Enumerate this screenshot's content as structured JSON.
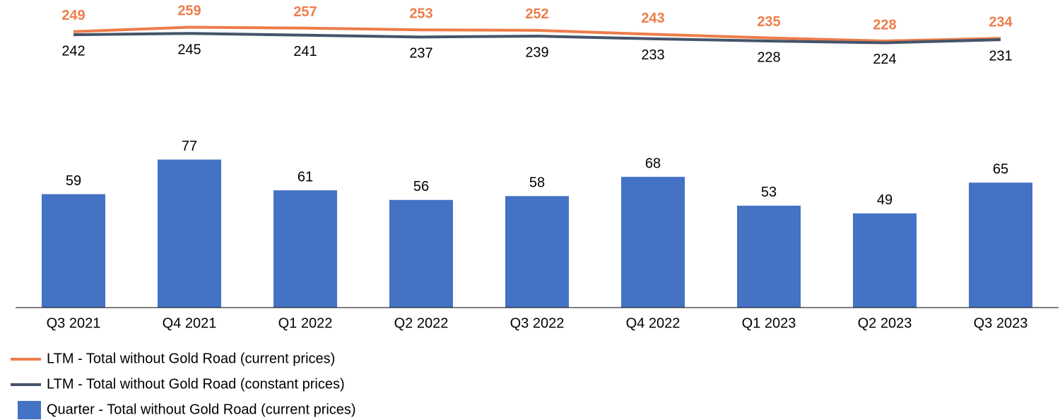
{
  "chart_data": {
    "type": "combo",
    "categories": [
      "Q3 2021",
      "Q4 2021",
      "Q1 2022",
      "Q2 2022",
      "Q3 2022",
      "Q4 2022",
      "Q1 2023",
      "Q2 2023",
      "Q3 2023"
    ],
    "series": [
      {
        "name": "LTM - Total without Gold Road (current prices)",
        "type": "line",
        "axis": "y2",
        "color": "#ED7D4A",
        "values": [
          249,
          259,
          257,
          253,
          252,
          243,
          235,
          228,
          234
        ]
      },
      {
        "name": "LTM - Total without Gold Road (constant prices)",
        "type": "line",
        "axis": "y2",
        "color": "#44546A",
        "values": [
          242,
          245,
          241,
          237,
          239,
          233,
          228,
          224,
          231
        ]
      },
      {
        "name": "Quarter - Total without Gold Road (current prices)",
        "type": "bar",
        "color": "#4472C4",
        "values": [
          59,
          77,
          61,
          56,
          58,
          68,
          53,
          49,
          65
        ]
      }
    ],
    "ylim": [
      0,
      160
    ],
    "y2lim": [
      -370,
      320
    ]
  }
}
